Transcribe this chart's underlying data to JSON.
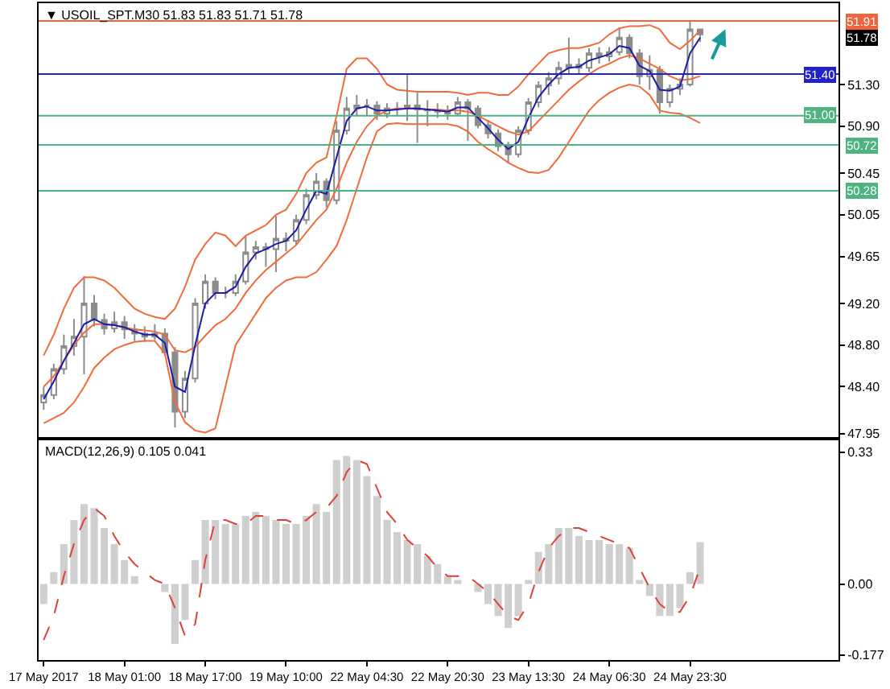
{
  "chart_data": [
    {
      "type": "candlestick",
      "title": "▼ USOIL_SPT.M30 51.83 51.83 51.71 51.78",
      "categories": [
        null,
        null,
        null,
        null,
        null,
        null,
        null,
        null,
        null,
        null,
        null,
        null,
        null,
        null,
        null,
        null,
        null,
        null,
        null,
        null,
        null,
        null,
        null,
        null,
        null,
        null,
        null,
        null,
        null,
        null,
        null,
        null,
        null,
        null,
        null,
        null,
        null,
        null,
        null,
        null,
        null,
        null,
        null,
        null,
        null,
        null,
        null,
        null,
        null,
        null,
        null,
        null,
        null,
        null,
        null,
        null,
        null,
        null,
        null,
        null,
        null,
        null,
        null,
        null,
        null,
        null
      ],
      "series": [
        {
          "type": "line",
          "color": "#f26b3a",
          "values": [
            48.7,
            48.9,
            49.15,
            49.35,
            49.45,
            49.45,
            49.42,
            49.35,
            49.25,
            49.15,
            49.1,
            49.07,
            49.05,
            49.15,
            49.36,
            49.62,
            49.77,
            49.88,
            49.85,
            49.75,
            49.85,
            49.9,
            49.95,
            50.05,
            50.1,
            50.25,
            50.45,
            50.55,
            50.6,
            51.0,
            51.45,
            51.55,
            51.55,
            51.45,
            51.3,
            51.25,
            51.24,
            51.23,
            51.23,
            51.23,
            51.23,
            51.22,
            51.2,
            51.22,
            51.22,
            51.2,
            51.2,
            51.28,
            51.4,
            51.5,
            51.6,
            51.63,
            51.65,
            51.65,
            51.67,
            51.7,
            51.78,
            51.84,
            51.86,
            51.86,
            51.87,
            51.83,
            51.7,
            51.64,
            51.72,
            51.82
          ]
        },
        {
          "type": "line",
          "color": "#f26b3a",
          "values": [
            48.4,
            48.5,
            48.65,
            48.8,
            48.92,
            49.0,
            49.0,
            48.99,
            48.97,
            48.95,
            48.94,
            48.93,
            48.9,
            48.75,
            48.73,
            48.78,
            48.89,
            48.99,
            49.05,
            49.15,
            49.3,
            49.42,
            49.52,
            49.6,
            49.68,
            49.76,
            49.88,
            50.0,
            50.1,
            50.3,
            50.55,
            50.75,
            50.9,
            51.0,
            51.05,
            51.07,
            51.07,
            51.07,
            51.06,
            51.06,
            51.05,
            51.05,
            51.04,
            51.0,
            50.95,
            50.9,
            50.85,
            50.82,
            50.85,
            50.95,
            51.05,
            51.15,
            51.25,
            51.33,
            51.4,
            51.46,
            51.5,
            51.55,
            51.58,
            51.55,
            51.5,
            51.45,
            51.38,
            51.34,
            51.35,
            51.38
          ]
        },
        {
          "type": "line",
          "color": "#f26b3a",
          "values": [
            48.05,
            48.1,
            48.15,
            48.25,
            48.4,
            48.58,
            48.68,
            48.76,
            48.8,
            48.83,
            48.84,
            48.84,
            48.72,
            48.25,
            48.06,
            47.98,
            47.96,
            48.0,
            48.4,
            48.8,
            48.95,
            49.1,
            49.25,
            49.35,
            49.42,
            49.45,
            49.45,
            49.5,
            49.62,
            49.75,
            50.0,
            50.3,
            50.6,
            50.85,
            50.92,
            50.93,
            50.92,
            50.92,
            50.92,
            50.92,
            50.92,
            50.9,
            50.85,
            50.75,
            50.68,
            50.62,
            50.55,
            50.5,
            50.46,
            50.45,
            50.48,
            50.6,
            50.75,
            50.9,
            51.05,
            51.15,
            51.22,
            51.27,
            51.3,
            51.28,
            51.2,
            51.05,
            51.03,
            51.02,
            50.98,
            50.93
          ]
        },
        {
          "type": "line",
          "color": "#1c1ca8",
          "values": [
            48.28,
            48.45,
            48.65,
            48.82,
            49.0,
            49.05,
            49.0,
            48.99,
            48.97,
            48.93,
            48.9,
            48.9,
            48.82,
            48.4,
            48.35,
            48.8,
            49.2,
            49.3,
            49.3,
            49.36,
            49.55,
            49.68,
            49.72,
            49.77,
            49.8,
            49.9,
            50.1,
            50.28,
            50.25,
            50.6,
            50.95,
            51.07,
            51.09,
            51.05,
            51.05,
            51.06,
            51.07,
            51.07,
            51.06,
            51.05,
            51.04,
            51.08,
            51.08,
            50.98,
            50.88,
            50.77,
            50.68,
            50.75,
            50.98,
            51.18,
            51.3,
            51.4,
            51.46,
            51.47,
            51.53,
            51.56,
            51.59,
            51.67,
            51.65,
            51.48,
            51.43,
            51.25,
            51.24,
            51.28,
            51.6,
            51.75
          ]
        },
        {
          "color": "#8c8c8c",
          "ohlc": [
            [
              48.25,
              48.4,
              48.18,
              48.32
            ],
            [
              48.32,
              48.62,
              48.28,
              48.57
            ],
            [
              48.57,
              48.9,
              48.52,
              48.79
            ],
            [
              48.79,
              49.05,
              48.7,
              48.88
            ],
            [
              48.88,
              49.46,
              48.52,
              49.2
            ],
            [
              49.2,
              49.28,
              48.98,
              49.04
            ],
            [
              49.04,
              49.1,
              48.9,
              48.96
            ],
            [
              48.96,
              49.12,
              48.92,
              49.02
            ],
            [
              49.02,
              49.08,
              48.86,
              48.95
            ],
            [
              48.95,
              49.0,
              48.84,
              48.91
            ],
            [
              48.91,
              48.98,
              48.83,
              48.88
            ],
            [
              48.88,
              49.0,
              48.85,
              48.91
            ],
            [
              48.91,
              48.96,
              48.7,
              48.73
            ],
            [
              48.73,
              48.78,
              48.01,
              48.16
            ],
            [
              48.16,
              48.55,
              48.1,
              48.48
            ],
            [
              48.48,
              49.25,
              48.44,
              49.2
            ],
            [
              49.2,
              49.48,
              49.15,
              49.41
            ],
            [
              49.41,
              49.45,
              49.24,
              49.3
            ],
            [
              49.3,
              49.36,
              49.25,
              49.3
            ],
            [
              49.3,
              49.48,
              49.27,
              49.41
            ],
            [
              49.41,
              49.85,
              49.38,
              49.69
            ],
            [
              49.69,
              49.8,
              49.62,
              49.74
            ],
            [
              49.74,
              49.78,
              49.55,
              49.72
            ],
            [
              49.72,
              50.04,
              49.5,
              49.82
            ],
            [
              49.82,
              49.88,
              49.7,
              49.8
            ],
            [
              49.8,
              50.05,
              49.76,
              50.0
            ],
            [
              50.0,
              50.3,
              49.96,
              50.24
            ],
            [
              50.24,
              50.45,
              50.2,
              50.37
            ],
            [
              50.37,
              50.4,
              50.12,
              50.19
            ],
            [
              50.19,
              50.95,
              50.15,
              50.86
            ],
            [
              50.86,
              51.18,
              50.82,
              51.07
            ],
            [
              51.07,
              51.2,
              51.0,
              51.1
            ],
            [
              51.1,
              51.16,
              51.0,
              51.1
            ],
            [
              51.1,
              51.14,
              50.96,
              51.02
            ],
            [
              51.02,
              51.12,
              50.98,
              51.07
            ],
            [
              51.07,
              51.13,
              51.0,
              51.07
            ],
            [
              51.07,
              51.4,
              50.95,
              51.1
            ],
            [
              51.1,
              51.22,
              50.74,
              51.06
            ],
            [
              51.06,
              51.15,
              50.9,
              51.05
            ],
            [
              51.05,
              51.12,
              50.98,
              51.04
            ],
            [
              51.04,
              51.1,
              50.96,
              51.02
            ],
            [
              51.02,
              51.18,
              51.0,
              51.13
            ],
            [
              51.13,
              51.16,
              50.76,
              51.07
            ],
            [
              51.07,
              51.1,
              50.88,
              50.91
            ],
            [
              50.91,
              50.96,
              50.78,
              50.83
            ],
            [
              50.83,
              50.87,
              50.66,
              50.71
            ],
            [
              50.71,
              50.75,
              50.55,
              50.63
            ],
            [
              50.63,
              50.9,
              50.6,
              50.86
            ],
            [
              50.86,
              51.17,
              50.82,
              51.13
            ],
            [
              51.13,
              51.33,
              51.08,
              51.29
            ],
            [
              51.29,
              51.42,
              51.2,
              51.36
            ],
            [
              51.36,
              51.52,
              51.3,
              51.46
            ],
            [
              51.46,
              51.75,
              51.4,
              51.49
            ],
            [
              51.49,
              51.55,
              51.4,
              51.46
            ],
            [
              51.46,
              51.65,
              51.42,
              51.6
            ],
            [
              51.6,
              51.66,
              51.5,
              51.57
            ],
            [
              51.57,
              51.66,
              51.52,
              51.61
            ],
            [
              51.61,
              51.85,
              51.58,
              51.75
            ],
            [
              51.75,
              51.78,
              51.55,
              51.6
            ],
            [
              51.6,
              51.64,
              51.3,
              51.38
            ],
            [
              51.38,
              51.58,
              51.25,
              51.44
            ],
            [
              51.44,
              51.48,
              51.02,
              51.13
            ],
            [
              51.13,
              51.3,
              51.08,
              51.26
            ],
            [
              51.26,
              51.36,
              51.2,
              51.3
            ],
            [
              51.3,
              51.91,
              51.28,
              51.83
            ],
            [
              51.83,
              51.83,
              51.71,
              51.78
            ]
          ]
        }
      ],
      "ylim": [
        47.92,
        52.08
      ],
      "yticks": [
        {
          "value": 51.3,
          "label": "51.30"
        },
        {
          "value": 50.9,
          "label": "50.90"
        },
        50.45,
        50.05,
        49.65,
        {
          "value": 49.2,
          "label": "49.20"
        },
        {
          "value": 48.8,
          "label": "48.80"
        },
        {
          "value": 48.4,
          "label": "48.40"
        },
        47.95
      ],
      "ref_lines": [
        {
          "axis": "y",
          "value": 51.91,
          "label": "51.91",
          "color": "#f0643c"
        },
        {
          "axis": "y",
          "value": 51.4,
          "label": "51.40",
          "color": "#2222cc"
        },
        {
          "axis": "y",
          "value": 51.0,
          "label": "51.00",
          "color": "#4db380"
        },
        {
          "axis": "y",
          "value": 50.72,
          "label": "50.72",
          "color": "#4db380"
        },
        {
          "axis": "y",
          "value": 50.28,
          "label": "50.28",
          "color": "#4db380"
        }
      ],
      "annotations": [
        "51.78"
      ]
    },
    {
      "type": "bar",
      "title": "MACD(12,26,9) 0.105 0.041",
      "categories": [
        "17 May 2017",
        null,
        null,
        null,
        null,
        null,
        null,
        null,
        "18 May 01:00",
        null,
        null,
        null,
        null,
        null,
        null,
        null,
        "18 May 17:00",
        null,
        null,
        null,
        null,
        null,
        null,
        null,
        "19 May 10:00",
        null,
        null,
        null,
        null,
        null,
        null,
        null,
        "22 May 04:30",
        null,
        null,
        null,
        null,
        null,
        null,
        null,
        "22 May 20:30",
        null,
        null,
        null,
        null,
        null,
        null,
        null,
        "23 May 13:30",
        null,
        null,
        null,
        null,
        null,
        null,
        null,
        "24 May 06:30",
        null,
        null,
        null,
        null,
        null,
        null,
        null,
        "24 May 23:30",
        null
      ],
      "series": [
        {
          "color": "#cfcfcf",
          "values": [
            -0.05,
            0.03,
            0.1,
            0.16,
            0.2,
            0.19,
            0.14,
            0.1,
            0.06,
            0.02,
            0.0,
            0.0,
            -0.02,
            -0.15,
            -0.09,
            0.06,
            0.16,
            0.16,
            0.15,
            0.15,
            0.17,
            0.18,
            0.17,
            0.16,
            0.15,
            0.15,
            0.17,
            0.2,
            0.18,
            0.31,
            0.32,
            0.31,
            0.27,
            0.22,
            0.16,
            0.13,
            0.11,
            0.1,
            0.07,
            0.05,
            0.02,
            0.01,
            0.0,
            -0.02,
            -0.05,
            -0.08,
            -0.11,
            -0.08,
            0.01,
            0.08,
            0.1,
            0.14,
            0.14,
            0.12,
            0.11,
            0.11,
            0.1,
            0.1,
            0.09,
            0.01,
            -0.03,
            -0.08,
            -0.08,
            -0.06,
            0.03,
            0.105
          ]
        },
        {
          "type": "line",
          "color": "#e0403a",
          "line_style": "dashed",
          "values": [
            -0.14,
            -0.08,
            0.02,
            0.1,
            0.16,
            0.19,
            0.17,
            0.12,
            0.08,
            0.05,
            0.03,
            0.01,
            0.0,
            -0.06,
            -0.13,
            -0.1,
            0.06,
            0.16,
            0.16,
            0.15,
            0.15,
            0.17,
            0.17,
            0.16,
            0.16,
            0.15,
            0.16,
            0.18,
            0.19,
            0.22,
            0.28,
            0.31,
            0.3,
            0.24,
            0.18,
            0.15,
            0.11,
            0.09,
            0.07,
            0.04,
            0.02,
            0.02,
            0.02,
            0.0,
            -0.02,
            -0.05,
            -0.08,
            -0.09,
            -0.05,
            0.03,
            0.09,
            0.12,
            0.14,
            0.14,
            0.13,
            0.12,
            0.11,
            0.1,
            0.09,
            0.04,
            -0.01,
            -0.05,
            -0.07,
            -0.07,
            -0.03,
            0.041
          ]
        }
      ],
      "ylim": [
        -0.19,
        0.36
      ],
      "yticks": [
        0.33,
        {
          "value": 0,
          "label": "0.00"
        },
        -0.177
      ]
    }
  ]
}
